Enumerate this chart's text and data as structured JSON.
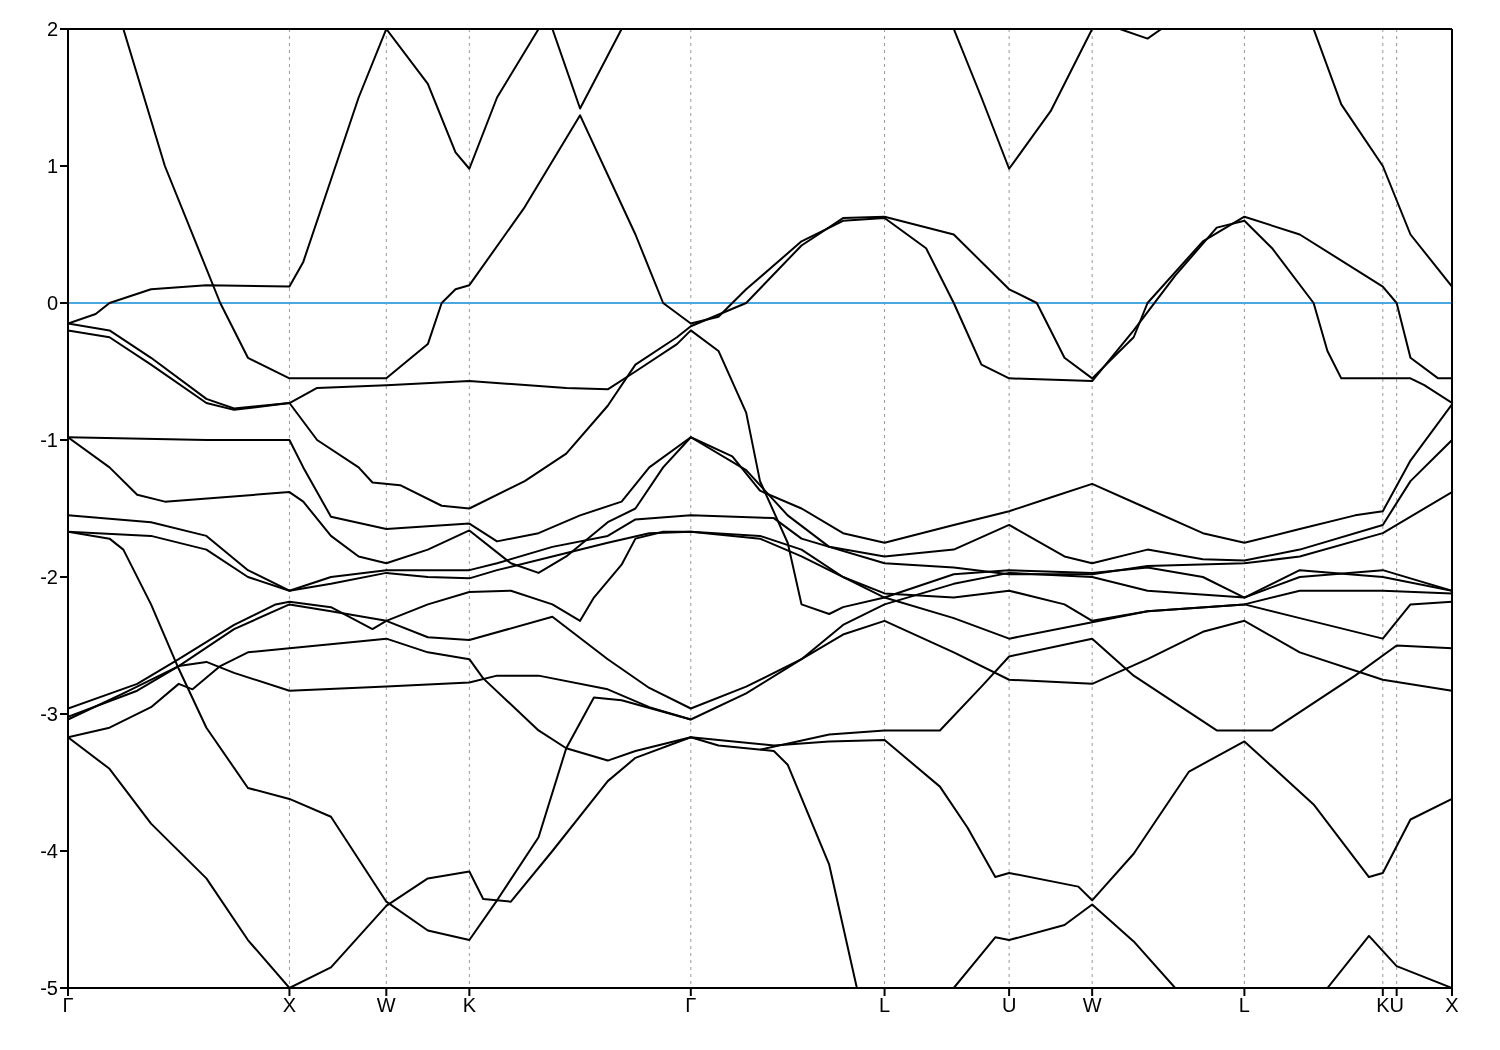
{
  "chart_data": {
    "type": "line",
    "ylim": [
      -5,
      2
    ],
    "categories": [
      "Γ",
      null,
      null,
      null,
      null,
      null,
      null,
      null,
      null,
      null,
      null,
      null,
      null,
      null,
      null,
      null,
      "X",
      null,
      null,
      null,
      null,
      null,
      null,
      "W",
      null,
      null,
      null,
      null,
      null,
      "K",
      null,
      null,
      null,
      null,
      null,
      null,
      null,
      null,
      null,
      null,
      null,
      null,
      null,
      null,
      null,
      "Γ",
      null,
      null,
      null,
      null,
      null,
      null,
      null,
      null,
      null,
      null,
      null,
      null,
      null,
      "L",
      null,
      null,
      null,
      null,
      null,
      null,
      null,
      null,
      "U",
      null,
      null,
      null,
      null,
      null,
      "W",
      null,
      null,
      null,
      null,
      null,
      null,
      null,
      null,
      null,
      null,
      "L",
      null,
      null,
      null,
      null,
      null,
      null,
      null,
      null,
      null,
      "K",
      "U",
      null,
      null,
      null,
      "X"
    ],
    "yticks": [
      -5,
      -4,
      -3,
      -2,
      -1,
      0,
      1,
      2
    ],
    "grid": "x",
    "ref_lines": [
      {
        "axis": "y",
        "value": 0,
        "color": "#4aa8e0"
      }
    ],
    "series": [
      {
        "color": "#000000",
        "values": [
          -0.15,
          null,
          -0.08,
          0,
          null,
          null,
          0.1,
          null,
          null,
          null,
          0.13,
          null,
          null,
          null,
          null,
          null,
          0.12,
          0.3,
          null,
          0.9,
          null,
          1.5,
          null,
          2,
          null,
          null,
          null,
          null,
          null,
          null,
          null,
          null,
          null,
          null,
          null,
          null,
          null,
          null,
          null,
          null,
          null,
          null,
          null,
          null,
          null,
          null,
          null,
          null,
          null,
          null,
          null,
          null,
          null,
          null,
          null,
          null,
          null,
          null,
          null,
          null,
          null,
          null,
          null,
          null,
          null,
          null,
          null,
          null,
          null,
          null,
          null,
          null,
          null,
          null,
          null,
          null,
          null,
          null,
          null,
          null,
          null,
          null,
          null,
          null,
          null,
          null,
          null,
          null,
          null,
          null,
          null,
          null,
          null,
          null,
          null,
          null,
          null,
          null,
          null,
          null,
          null
        ]
      },
      {
        "color": "#000000",
        "values": [
          null,
          null,
          null,
          null,
          null,
          null,
          null,
          null,
          null,
          null,
          null,
          null,
          null,
          null,
          null,
          null,
          null,
          null,
          null,
          null,
          null,
          null,
          null,
          2,
          null,
          null,
          1.6,
          null,
          1.1,
          0.98,
          null,
          1.5,
          null,
          null,
          2,
          null,
          null,
          null,
          null,
          null,
          null,
          null,
          null,
          null,
          null,
          null,
          null,
          null,
          null,
          null,
          null,
          null,
          null,
          null,
          null,
          null,
          null,
          null,
          null,
          null,
          null,
          null,
          null,
          null,
          null,
          null,
          null,
          null,
          null,
          null,
          null,
          null,
          null,
          null,
          null,
          null,
          null,
          null,
          null,
          null,
          null,
          null,
          null,
          null,
          null,
          null,
          null,
          null,
          null,
          null,
          null,
          null,
          null,
          null,
          null,
          null,
          null,
          null,
          null,
          null,
          null
        ]
      },
      {
        "color": "#000000",
        "values": [
          null,
          null,
          null,
          null,
          null,
          null,
          null,
          null,
          null,
          null,
          null,
          null,
          null,
          null,
          null,
          null,
          null,
          null,
          null,
          null,
          null,
          null,
          null,
          null,
          null,
          null,
          null,
          null,
          null,
          null,
          null,
          null,
          null,
          null,
          null,
          2,
          null,
          1.42,
          null,
          null,
          2,
          null,
          null,
          null,
          null,
          null,
          null,
          null,
          null,
          null,
          null,
          null,
          null,
          null,
          null,
          null,
          null,
          null,
          null,
          null,
          null,
          null,
          null,
          null,
          null,
          null,
          null,
          null,
          null,
          null,
          null,
          null,
          null,
          null,
          null,
          null,
          null,
          null,
          null,
          null,
          null,
          null,
          null,
          null,
          null,
          null,
          null,
          null,
          null,
          null,
          null,
          null,
          null,
          null,
          null,
          null,
          null,
          null,
          null,
          null,
          null
        ]
      },
      {
        "color": "#000000",
        "values": [
          null,
          null,
          null,
          null,
          null,
          null,
          null,
          null,
          null,
          null,
          null,
          null,
          null,
          null,
          null,
          null,
          null,
          null,
          null,
          null,
          null,
          null,
          null,
          null,
          null,
          null,
          null,
          null,
          null,
          null,
          null,
          null,
          null,
          null,
          null,
          null,
          null,
          null,
          null,
          null,
          null,
          null,
          null,
          null,
          null,
          null,
          null,
          null,
          null,
          null,
          null,
          null,
          null,
          null,
          null,
          null,
          null,
          null,
          null,
          null,
          null,
          null,
          null,
          null,
          2,
          null,
          1.5,
          null,
          0.98,
          null,
          null,
          1.4,
          null,
          null,
          2,
          null,
          null,
          null,
          null,
          null,
          null,
          null,
          null,
          null,
          null,
          null,
          null,
          null,
          null,
          null,
          null,
          null,
          null,
          null,
          null,
          null,
          null,
          null,
          null,
          null,
          null
        ]
      },
      {
        "color": "#000000",
        "values": [
          null,
          null,
          null,
          null,
          null,
          null,
          null,
          null,
          null,
          null,
          null,
          null,
          null,
          null,
          null,
          null,
          null,
          null,
          null,
          null,
          null,
          null,
          null,
          null,
          null,
          null,
          null,
          null,
          null,
          null,
          null,
          null,
          null,
          null,
          null,
          null,
          null,
          null,
          null,
          null,
          null,
          null,
          null,
          null,
          null,
          null,
          null,
          null,
          null,
          null,
          null,
          null,
          null,
          null,
          null,
          null,
          null,
          null,
          null,
          null,
          null,
          null,
          null,
          null,
          null,
          null,
          null,
          null,
          null,
          null,
          null,
          null,
          null,
          null,
          null,
          null,
          2,
          null,
          1.93,
          2,
          null,
          null,
          null,
          null,
          null,
          null,
          null,
          null,
          null,
          null,
          null,
          null,
          null,
          null,
          null,
          null,
          null,
          null,
          null,
          null,
          null
        ]
      },
      {
        "color": "#000000",
        "values": [
          null,
          null,
          null,
          null,
          null,
          null,
          null,
          null,
          null,
          null,
          null,
          null,
          null,
          null,
          null,
          null,
          null,
          null,
          null,
          null,
          null,
          null,
          null,
          null,
          null,
          null,
          null,
          null,
          null,
          null,
          null,
          null,
          null,
          null,
          null,
          null,
          null,
          null,
          null,
          null,
          null,
          null,
          null,
          null,
          null,
          null,
          null,
          null,
          null,
          null,
          null,
          null,
          null,
          null,
          null,
          null,
          null,
          null,
          null,
          null,
          null,
          null,
          null,
          null,
          null,
          null,
          null,
          null,
          null,
          null,
          null,
          null,
          null,
          null,
          null,
          null,
          null,
          null,
          null,
          null,
          null,
          null,
          null,
          null,
          null,
          null,
          null,
          null,
          null,
          null,
          2,
          null,
          1.45,
          null,
          null,
          1,
          null,
          0.5,
          null,
          null,
          0.12
        ]
      },
      {
        "color": "#000000",
        "values": [
          null,
          null,
          null,
          null,
          2,
          null,
          null,
          1,
          null,
          null,
          null,
          0,
          null,
          -0.4,
          null,
          null,
          -0.55,
          null,
          null,
          null,
          null,
          null,
          null,
          -0.55,
          null,
          null,
          -0.3,
          0,
          0.1,
          0.13,
          null,
          null,
          null,
          0.7,
          null,
          null,
          null,
          1.37,
          null,
          null,
          null,
          0.5,
          null,
          0,
          null,
          -0.15,
          null,
          -0.1,
          null,
          0.1,
          null,
          null,
          null,
          0.45,
          null,
          null,
          0.6,
          null,
          null,
          0.62,
          null,
          null,
          0.4,
          null,
          0,
          null,
          -0.45,
          null,
          -0.55,
          null,
          null,
          null,
          null,
          null,
          -0.57,
          null,
          null,
          -0.2,
          null,
          null,
          0.2,
          null,
          null,
          0.55,
          null,
          0.6,
          null,
          0.4,
          null,
          null,
          0,
          -0.35,
          -0.55,
          null,
          null,
          null,
          null,
          -0.55,
          -0.6,
          null,
          -0.73
        ]
      },
      {
        "color": "#000000",
        "values": [
          -0.2,
          null,
          null,
          -0.25,
          null,
          null,
          -0.45,
          null,
          null,
          null,
          -0.73,
          null,
          -0.78,
          null,
          null,
          null,
          -0.73,
          null,
          -1,
          null,
          null,
          -1.2,
          -1.31,
          null,
          -1.33,
          null,
          null,
          -1.48,
          null,
          -1.5,
          null,
          null,
          null,
          -1.3,
          null,
          null,
          -1.1,
          null,
          null,
          -0.75,
          null,
          -0.45,
          null,
          null,
          -0.25,
          -0.17,
          null,
          null,
          null,
          0,
          null,
          null,
          null,
          0.42,
          null,
          null,
          0.62,
          null,
          null,
          0.63,
          null,
          null,
          null,
          null,
          0.5,
          null,
          null,
          null,
          0.1,
          null,
          0,
          null,
          -0.4,
          null,
          -0.55,
          null,
          null,
          -0.25,
          0,
          null,
          null,
          null,
          0.45,
          null,
          null,
          0.63,
          null,
          null,
          null,
          0.5,
          null,
          null,
          null,
          null,
          null,
          0.12,
          0,
          -0.4,
          null,
          -0.55,
          -0.55
        ]
      },
      {
        "color": "#000000",
        "values": [
          -0.15,
          null,
          null,
          -0.2,
          null,
          null,
          -0.4,
          null,
          null,
          null,
          -0.7,
          null,
          -0.77,
          null,
          null,
          null,
          -0.73,
          null,
          -0.62,
          null,
          null,
          null,
          null,
          -0.6,
          null,
          null,
          null,
          null,
          null,
          -0.57,
          null,
          null,
          null,
          null,
          null,
          null,
          -0.62,
          null,
          null,
          -0.63,
          null,
          -0.5,
          null,
          null,
          -0.3,
          -0.2,
          null,
          -0.35,
          null,
          -0.8,
          -1.3,
          null,
          -1.75,
          -2.2,
          null,
          -2.27,
          -2.22,
          null,
          null,
          -2.15,
          null,
          null,
          null,
          null,
          -1.98,
          null,
          null,
          null,
          -1.95,
          null,
          null,
          null,
          null,
          null,
          -1.97,
          null,
          null,
          null,
          -1.93,
          null,
          null,
          null,
          -2,
          null,
          null,
          -2.15,
          null,
          null,
          null,
          -1.95,
          null,
          null,
          null,
          null,
          null,
          -2,
          null,
          null,
          null,
          null,
          -2.1
        ]
      },
      {
        "color": "#000000",
        "values": [
          -0.98,
          null,
          null,
          null,
          null,
          null,
          null,
          null,
          null,
          null,
          -1,
          null,
          null,
          null,
          null,
          null,
          -1,
          -1.2,
          null,
          -1.56,
          null,
          null,
          null,
          -1.65,
          null,
          null,
          null,
          null,
          null,
          -1.61,
          null,
          -1.74,
          null,
          null,
          -1.68,
          null,
          null,
          -1.55,
          null,
          null,
          -1.45,
          null,
          -1.2,
          null,
          null,
          -0.98,
          null,
          null,
          -1.12,
          null,
          -1.37,
          null,
          null,
          -1.5,
          null,
          null,
          -1.68,
          null,
          null,
          -1.75,
          null,
          null,
          null,
          null,
          -1.62,
          null,
          null,
          null,
          -1.52,
          null,
          null,
          -1.42,
          null,
          null,
          -1.32,
          null,
          null,
          null,
          -1.5,
          null,
          null,
          null,
          -1.68,
          null,
          null,
          -1.75,
          null,
          null,
          null,
          -1.65,
          null,
          null,
          null,
          -1.55,
          null,
          -1.52,
          null,
          -1.15,
          null,
          null,
          -0.74
        ]
      },
      {
        "color": "#000000",
        "values": [
          -0.98,
          null,
          null,
          -1.2,
          null,
          -1.4,
          null,
          -1.45,
          null,
          null,
          null,
          null,
          null,
          null,
          null,
          null,
          -1.38,
          -1.45,
          null,
          -1.7,
          null,
          -1.85,
          null,
          -1.9,
          null,
          null,
          -1.8,
          null,
          null,
          -1.66,
          null,
          null,
          -1.9,
          null,
          -1.97,
          null,
          -1.85,
          null,
          null,
          -1.6,
          null,
          -1.5,
          null,
          -1.2,
          null,
          -0.98,
          null,
          null,
          null,
          -1.22,
          null,
          null,
          -1.55,
          null,
          null,
          -1.78,
          null,
          null,
          null,
          -1.85,
          null,
          null,
          null,
          null,
          -1.8,
          null,
          null,
          null,
          -1.62,
          null,
          null,
          null,
          -1.85,
          null,
          -1.9,
          null,
          null,
          null,
          -1.8,
          null,
          null,
          null,
          -1.87,
          null,
          null,
          -1.88,
          null,
          null,
          null,
          -1.8,
          null,
          null,
          null,
          null,
          null,
          -1.62,
          null,
          -1.3,
          null,
          null,
          -1
        ]
      },
      {
        "color": "#000000",
        "values": [
          -1.55,
          null,
          null,
          null,
          null,
          null,
          -1.6,
          null,
          null,
          null,
          -1.7,
          null,
          null,
          -1.95,
          null,
          null,
          -2.1,
          null,
          null,
          -2,
          null,
          null,
          null,
          -1.95,
          null,
          null,
          null,
          null,
          null,
          -1.95,
          null,
          -1.9,
          null,
          null,
          null,
          -1.78,
          null,
          null,
          null,
          -1.7,
          null,
          -1.58,
          null,
          null,
          null,
          -1.55,
          null,
          null,
          null,
          null,
          null,
          -1.57,
          null,
          -1.72,
          null,
          null,
          null,
          null,
          null,
          -1.9,
          null,
          null,
          null,
          null,
          -1.93,
          null,
          null,
          null,
          -1.98,
          null,
          null,
          null,
          null,
          null,
          -1.98,
          null,
          null,
          null,
          -1.92,
          null,
          null,
          null,
          null,
          null,
          null,
          -1.9,
          null,
          null,
          null,
          -1.85,
          null,
          null,
          null,
          null,
          null,
          -1.68,
          null,
          null,
          null,
          null,
          -1.38
        ]
      },
      {
        "color": "#000000",
        "values": [
          -1.67,
          null,
          null,
          null,
          null,
          null,
          -1.7,
          null,
          null,
          null,
          -1.8,
          null,
          null,
          -2,
          null,
          null,
          -2.1,
          null,
          null,
          -2.05,
          null,
          null,
          null,
          -1.97,
          null,
          null,
          -2,
          null,
          null,
          -2.01,
          null,
          -1.95,
          null,
          null,
          null,
          -1.85,
          null,
          null,
          null,
          -1.75,
          null,
          null,
          -1.68,
          null,
          null,
          -1.67,
          null,
          null,
          null,
          null,
          -1.72,
          null,
          null,
          -1.85,
          null,
          null,
          null,
          null,
          null,
          -2.15,
          null,
          null,
          null,
          null,
          -2.3,
          null,
          null,
          null,
          -2.45,
          null,
          null,
          null,
          null,
          null,
          -2.33,
          null,
          null,
          null,
          -2.25,
          null,
          null,
          null,
          null,
          null,
          null,
          -2.2,
          null,
          null,
          null,
          -2.3,
          null,
          null,
          null,
          null,
          null,
          -2.45,
          null,
          -2.2,
          null,
          null,
          -2.18
        ]
      },
      {
        "color": "#000000",
        "values": [
          -2.96,
          null,
          null,
          null,
          null,
          -2.78,
          null,
          null,
          -2.6,
          null,
          null,
          null,
          -2.35,
          null,
          null,
          -2.2,
          -2.18,
          null,
          null,
          -2.22,
          null,
          null,
          -2.38,
          -2.32,
          null,
          null,
          -2.2,
          null,
          null,
          -2.11,
          null,
          null,
          -2.1,
          null,
          null,
          -2.2,
          null,
          -2.32,
          -2.15,
          null,
          -1.91,
          -1.72,
          null,
          -1.67,
          null,
          -1.67,
          null,
          null,
          null,
          null,
          -1.7,
          null,
          null,
          -1.8,
          null,
          null,
          -2,
          null,
          null,
          -2.12,
          null,
          null,
          null,
          null,
          -2.15,
          null,
          null,
          null,
          -2.1,
          null,
          null,
          null,
          -2.2,
          null,
          -2.32,
          null,
          null,
          null,
          -2.25,
          null,
          null,
          null,
          null,
          null,
          null,
          -2.2,
          null,
          null,
          null,
          -2.1,
          null,
          null,
          null,
          null,
          null,
          -2.1,
          null,
          null,
          null,
          null,
          -2.12
        ]
      },
      {
        "color": "#000000",
        "values": [
          -3.02,
          null,
          null,
          null,
          null,
          -2.83,
          null,
          null,
          -2.65,
          null,
          null,
          null,
          -2.38,
          null,
          null,
          null,
          -2.2,
          null,
          null,
          -2.25,
          null,
          null,
          null,
          -2.32,
          null,
          null,
          -2.44,
          null,
          null,
          -2.46,
          null,
          null,
          null,
          null,
          null,
          -2.29,
          null,
          null,
          null,
          -2.6,
          null,
          null,
          -2.81,
          null,
          null,
          -2.96,
          null,
          null,
          null,
          -2.8,
          null,
          null,
          null,
          -2.6,
          null,
          null,
          -2.42,
          null,
          null,
          -2.32,
          null,
          null,
          null,
          null,
          -2.55,
          null,
          null,
          null,
          -2.75,
          null,
          null,
          null,
          null,
          null,
          -2.78,
          null,
          null,
          null,
          -2.6,
          null,
          null,
          null,
          -2.4,
          null,
          null,
          -2.32,
          null,
          null,
          null,
          -2.55,
          null,
          null,
          null,
          null,
          null,
          -2.75,
          null,
          null,
          null,
          null,
          -2.83
        ]
      },
      {
        "color": "#000000",
        "values": [
          -3.17,
          null,
          null,
          -3.1,
          null,
          null,
          -2.95,
          null,
          -2.78,
          -2.82,
          null,
          -2.65,
          null,
          -2.55,
          null,
          null,
          -2.52,
          null,
          null,
          null,
          null,
          -2.47,
          null,
          -2.45,
          null,
          null,
          -2.55,
          null,
          null,
          -2.6,
          -2.74,
          null,
          null,
          null,
          -3.12,
          null,
          -3.25,
          null,
          null,
          -3.34,
          null,
          -3.27,
          null,
          null,
          null,
          -3.17,
          null,
          null,
          null,
          null,
          null,
          -3.23,
          null,
          null,
          null,
          -3.2,
          null,
          null,
          null,
          -3.19,
          null,
          null,
          null,
          -3.53,
          null,
          -3.83,
          null,
          -4.19,
          -4.16,
          null,
          null,
          null,
          null,
          -4.26,
          -4.36,
          null,
          null,
          -4.02,
          null,
          null,
          null,
          -3.42,
          null,
          null,
          null,
          -3.2,
          null,
          null,
          null,
          null,
          -3.66,
          null,
          null,
          null,
          -4.19,
          -4.16,
          null,
          -3.77,
          null,
          null,
          -3.62
        ]
      },
      {
        "color": "#000000",
        "values": [
          -3.04,
          null,
          null,
          null,
          -2.85,
          null,
          null,
          null,
          -2.65,
          null,
          -2.62,
          null,
          -2.7,
          null,
          null,
          null,
          -2.83,
          null,
          null,
          null,
          null,
          null,
          null,
          -2.8,
          null,
          null,
          null,
          null,
          null,
          -2.77,
          null,
          -2.72,
          null,
          null,
          -2.72,
          null,
          null,
          null,
          null,
          -2.82,
          null,
          null,
          -2.95,
          null,
          null,
          -3.04,
          null,
          null,
          null,
          -2.85,
          null,
          null,
          null,
          -2.6,
          null,
          null,
          -2.35,
          null,
          null,
          -2.2,
          null,
          null,
          null,
          null,
          -2.05,
          null,
          null,
          null,
          -1.97,
          null,
          null,
          null,
          null,
          null,
          -2,
          null,
          null,
          null,
          -2.1,
          null,
          null,
          null,
          null,
          null,
          null,
          -2.15,
          null,
          null,
          null,
          -2,
          null,
          null,
          null,
          null,
          null,
          -1.95,
          null,
          null,
          null,
          null,
          -2.1
        ]
      },
      {
        "color": "#000000",
        "values": [
          -1.67,
          null,
          null,
          -1.72,
          -1.8,
          null,
          -2.2,
          null,
          -2.67,
          null,
          -3.1,
          null,
          null,
          -3.54,
          null,
          null,
          -3.62,
          null,
          null,
          -3.75,
          null,
          null,
          null,
          -4.37,
          null,
          null,
          -4.58,
          null,
          null,
          -4.65,
          null,
          -4.36,
          null,
          null,
          -3.9,
          null,
          -3.25,
          null,
          -2.88,
          null,
          -2.9,
          null,
          null,
          null,
          null,
          -3.04,
          null,
          null,
          null,
          null,
          null,
          null,
          null,
          null,
          null,
          null,
          null,
          null,
          null,
          null,
          null,
          null,
          null,
          null,
          null,
          null,
          null,
          null,
          null,
          null,
          null,
          null,
          null,
          null,
          null,
          null,
          null,
          null,
          null,
          null,
          null,
          null,
          null,
          null,
          null,
          null,
          null,
          null,
          null,
          null,
          null,
          null,
          null,
          null,
          null,
          null,
          null,
          null,
          null,
          null,
          null
        ]
      },
      {
        "color": "#000000",
        "values": [
          -3.17,
          null,
          null,
          -3.4,
          null,
          null,
          -3.8,
          null,
          null,
          null,
          -4.2,
          null,
          null,
          -4.65,
          null,
          null,
          -5,
          null,
          null,
          -4.85,
          null,
          null,
          null,
          -4.4,
          null,
          null,
          -4.2,
          null,
          null,
          -4.15,
          -4.35,
          null,
          -4.37,
          null,
          null,
          -4,
          null,
          null,
          null,
          -3.49,
          null,
          -3.32,
          null,
          null,
          null,
          -3.17,
          null,
          -3.23,
          null,
          null,
          null,
          -3.27,
          -3.37,
          null,
          null,
          -4.1,
          null,
          -5,
          null,
          null,
          null,
          null,
          null,
          null,
          null,
          null,
          null,
          null,
          null,
          null,
          null,
          null,
          null,
          null,
          null,
          null,
          null,
          null,
          null,
          null,
          null,
          null,
          null,
          null,
          null,
          null,
          null,
          null,
          null,
          null,
          null,
          null,
          null,
          null,
          null,
          null,
          null,
          null,
          null,
          null,
          null
        ]
      },
      {
        "color": "#000000",
        "values": [
          null,
          null,
          null,
          null,
          null,
          null,
          null,
          null,
          null,
          null,
          null,
          null,
          null,
          null,
          null,
          null,
          null,
          null,
          null,
          null,
          null,
          null,
          null,
          null,
          null,
          null,
          null,
          null,
          null,
          null,
          null,
          null,
          null,
          null,
          null,
          null,
          null,
          null,
          null,
          null,
          null,
          null,
          null,
          null,
          null,
          null,
          null,
          null,
          null,
          null,
          -3.26,
          null,
          null,
          null,
          null,
          -3.15,
          null,
          null,
          null,
          -3.12,
          null,
          null,
          null,
          -3.12,
          null,
          null,
          -2.8,
          null,
          -2.58,
          null,
          null,
          null,
          null,
          null,
          -2.45,
          null,
          null,
          -2.72,
          null,
          null,
          null,
          null,
          null,
          -3.12,
          null,
          null,
          null,
          -3.12,
          null,
          null,
          null,
          null,
          null,
          -2.72,
          null,
          null,
          -2.5,
          null,
          null,
          null,
          -2.52
        ]
      },
      {
        "color": "#000000",
        "values": [
          null,
          null,
          null,
          null,
          null,
          null,
          null,
          null,
          null,
          null,
          null,
          null,
          null,
          null,
          null,
          null,
          null,
          null,
          null,
          null,
          null,
          null,
          null,
          null,
          null,
          null,
          null,
          null,
          null,
          null,
          null,
          null,
          null,
          null,
          null,
          null,
          null,
          null,
          null,
          null,
          null,
          null,
          null,
          null,
          null,
          null,
          null,
          null,
          null,
          null,
          null,
          null,
          null,
          null,
          null,
          null,
          null,
          null,
          null,
          null,
          null,
          null,
          null,
          null,
          -5,
          null,
          null,
          -4.63,
          -4.65,
          null,
          null,
          null,
          -4.54,
          null,
          -4.39,
          null,
          null,
          -4.66,
          null,
          null,
          -5,
          null,
          null,
          null,
          null,
          null,
          null,
          null,
          null,
          null,
          null,
          null,
          null,
          null,
          null,
          null,
          null,
          null,
          null,
          null,
          null
        ]
      },
      {
        "color": "#000000",
        "values": [
          null,
          null,
          null,
          null,
          null,
          null,
          null,
          null,
          null,
          null,
          null,
          null,
          null,
          null,
          null,
          null,
          null,
          null,
          null,
          null,
          null,
          null,
          null,
          null,
          null,
          null,
          null,
          null,
          null,
          null,
          null,
          null,
          null,
          null,
          null,
          null,
          null,
          null,
          null,
          null,
          null,
          null,
          null,
          null,
          null,
          null,
          null,
          null,
          null,
          null,
          null,
          null,
          null,
          null,
          null,
          null,
          null,
          null,
          null,
          null,
          null,
          null,
          null,
          null,
          null,
          null,
          null,
          null,
          null,
          null,
          null,
          null,
          null,
          null,
          null,
          null,
          null,
          null,
          null,
          null,
          null,
          null,
          null,
          null,
          null,
          null,
          null,
          null,
          null,
          null,
          null,
          -5,
          null,
          null,
          -4.62,
          null,
          -4.84,
          null,
          null,
          null,
          -5
        ]
      }
    ]
  }
}
